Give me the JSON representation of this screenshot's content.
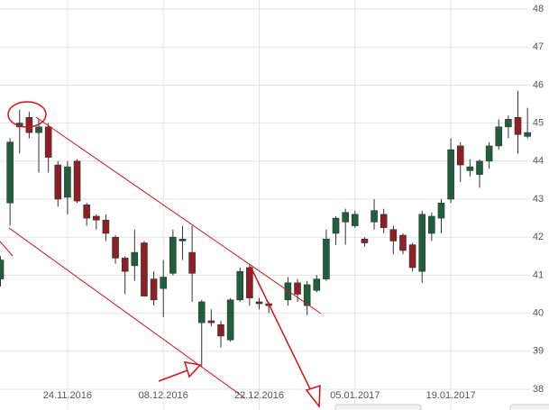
{
  "chart_data": {
    "type": "candlestick",
    "categories": [
      null,
      null,
      null,
      null,
      null,
      null,
      null,
      "24.11.2016",
      null,
      null,
      null,
      null,
      null,
      null,
      null,
      null,
      null,
      "08.12.2016",
      null,
      null,
      null,
      null,
      null,
      null,
      null,
      null,
      null,
      "22.12.2016",
      null,
      null,
      null,
      null,
      null,
      null,
      null,
      null,
      null,
      "05.01.2017",
      null,
      null,
      null,
      null,
      null,
      null,
      null,
      null,
      null,
      "19.01.2017",
      null,
      null,
      null,
      null,
      null,
      null,
      null,
      null
    ],
    "open": [
      40.9,
      42.9,
      44.9,
      45.15,
      44.75,
      44.9,
      43.9,
      43.05,
      44.0,
      42.85,
      42.55,
      42.45,
      42.0,
      41.45,
      41.25,
      41.85,
      40.9,
      40.65,
      41.05,
      41.9,
      41.6,
      39.75,
      39.8,
      39.7,
      39.3,
      40.35,
      41.2,
      40.3,
      40.25,
      null,
      40.35,
      40.8,
      40.2,
      40.6,
      40.9,
      42.1,
      42.4,
      42.3,
      41.95,
      42.4,
      42.6,
      42.2,
      42.05,
      41.8,
      41.1,
      42.1,
      42.5,
      43.0,
      44.4,
      43.75,
      43.65,
      44.0,
      44.4,
      44.9,
      45.15,
      44.65
    ],
    "high": [
      41.5,
      44.6,
      45.35,
      45.3,
      45.1,
      45.0,
      44.0,
      44.0,
      44.05,
      42.9,
      42.6,
      42.6,
      42.05,
      41.5,
      42.2,
      41.9,
      41.1,
      41.4,
      42.2,
      42.3,
      42.3,
      40.35,
      40.1,
      39.8,
      40.4,
      41.2,
      41.3,
      40.4,
      40.3,
      null,
      40.95,
      40.9,
      40.85,
      41.0,
      42.2,
      42.55,
      42.75,
      42.7,
      42.0,
      43.0,
      42.75,
      42.3,
      42.1,
      41.85,
      42.7,
      42.65,
      43.0,
      44.6,
      44.5,
      44.05,
      44.05,
      44.5,
      45.1,
      45.2,
      45.85,
      45.4
    ],
    "low": [
      40.7,
      42.3,
      44.2,
      44.6,
      43.7,
      43.7,
      42.8,
      42.6,
      42.9,
      42.3,
      42.2,
      41.9,
      41.3,
      40.5,
      40.85,
      40.45,
      40.2,
      39.9,
      41.0,
      41.4,
      40.3,
      38.6,
      39.65,
      39.1,
      39.25,
      40.3,
      40.2,
      40.1,
      40.0,
      null,
      40.2,
      40.3,
      39.95,
      40.55,
      40.85,
      41.8,
      41.8,
      42.25,
      41.75,
      42.2,
      42.1,
      41.55,
      41.55,
      41.1,
      40.8,
      41.9,
      42.1,
      42.9,
      43.45,
      43.6,
      43.3,
      43.8,
      44.3,
      44.6,
      44.2,
      44.6
    ],
    "close": [
      41.4,
      44.5,
      45.0,
      44.75,
      44.9,
      44.1,
      43.0,
      43.85,
      42.95,
      42.5,
      42.45,
      42.1,
      41.45,
      41.1,
      41.6,
      40.45,
      40.35,
      40.95,
      42.0,
      41.95,
      41.05,
      40.3,
      39.75,
      39.4,
      40.35,
      41.1,
      40.4,
      40.25,
      40.2,
      null,
      40.8,
      40.5,
      40.75,
      40.9,
      41.95,
      42.5,
      42.65,
      42.6,
      41.85,
      42.7,
      42.25,
      41.9,
      41.65,
      41.2,
      42.6,
      42.55,
      42.9,
      44.3,
      43.9,
      43.85,
      44.0,
      44.4,
      44.9,
      45.1,
      44.7,
      44.75
    ],
    "up_color": "#1f5f3c",
    "down_color": "#8e1f25",
    "ylim": [
      38,
      48
    ],
    "yticks": [
      38,
      39,
      40,
      41,
      42,
      43,
      44,
      45,
      46,
      47,
      48
    ],
    "grid": true
  }
}
